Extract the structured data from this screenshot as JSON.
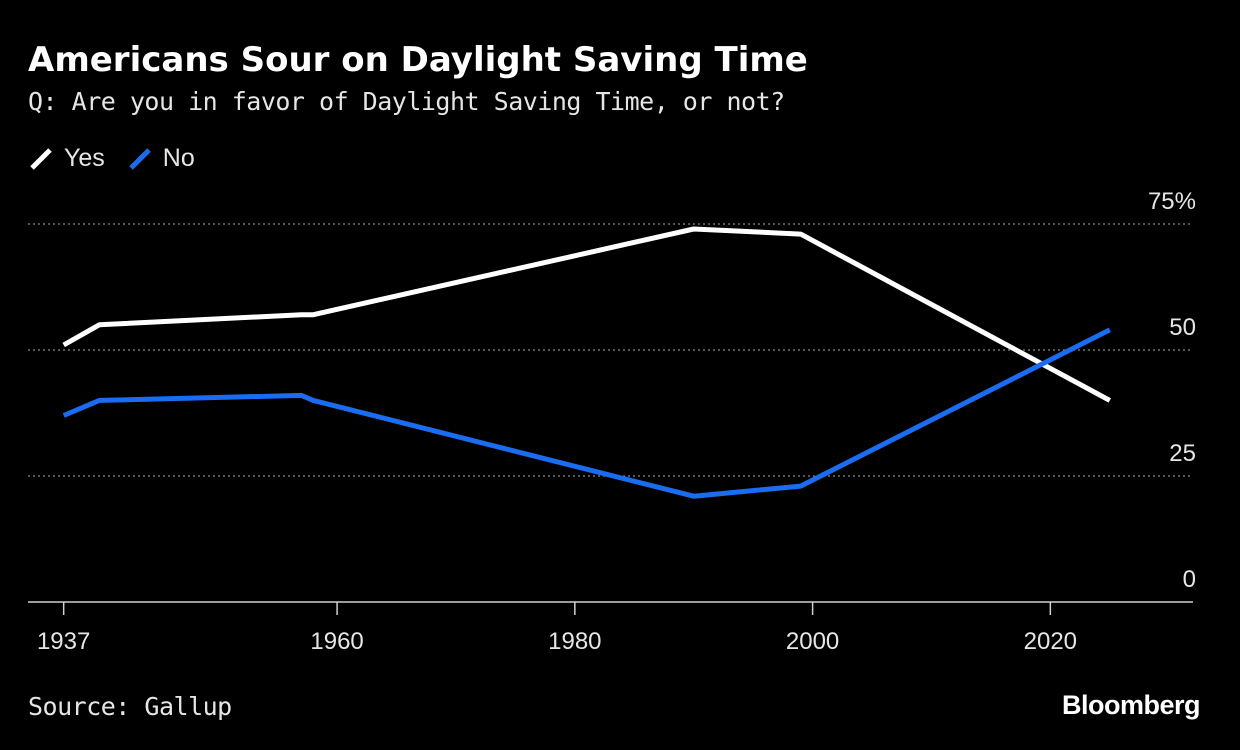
{
  "header": {
    "title": "Americans Sour on Daylight Saving Time",
    "subtitle": "Q: Are you in favor of Daylight Saving Time, or not?"
  },
  "legend": {
    "items": [
      {
        "label": "Yes",
        "color": "#ffffff"
      },
      {
        "label": "No",
        "color": "#1a6cf0"
      }
    ]
  },
  "footer": {
    "source": "Source: Gallup",
    "brand": "Bloomberg"
  },
  "chart_data": {
    "type": "line",
    "title": "Americans Sour on Daylight Saving Time",
    "subtitle": "Q: Are you in favor of Daylight Saving Time, or not?",
    "xlabel": "",
    "ylabel": "",
    "xlim": [
      1934,
      2032
    ],
    "ylim": [
      0,
      75
    ],
    "x_ticks": [
      {
        "value": 1937,
        "label": "1937"
      },
      {
        "value": 1960,
        "label": "1960"
      },
      {
        "value": 1980,
        "label": "1980"
      },
      {
        "value": 2000,
        "label": "2000"
      },
      {
        "value": 2020,
        "label": "2020"
      }
    ],
    "y_ticks": [
      {
        "value": 0,
        "label": "0"
      },
      {
        "value": 25,
        "label": "25"
      },
      {
        "value": 50,
        "label": "50"
      },
      {
        "value": 75,
        "label": "75%"
      }
    ],
    "grid": true,
    "legend_position": "top-left",
    "series": [
      {
        "name": "Yes",
        "color": "#ffffff",
        "x": [
          1937,
          1940,
          1957,
          1958,
          1990,
          1999,
          2025
        ],
        "values": [
          51,
          55,
          57,
          57,
          74,
          73,
          40
        ]
      },
      {
        "name": "No",
        "color": "#1a6cf0",
        "x": [
          1937,
          1940,
          1957,
          1958,
          1990,
          1999,
          2025
        ],
        "values": [
          37,
          40,
          41,
          40,
          21,
          23,
          54
        ]
      }
    ]
  }
}
